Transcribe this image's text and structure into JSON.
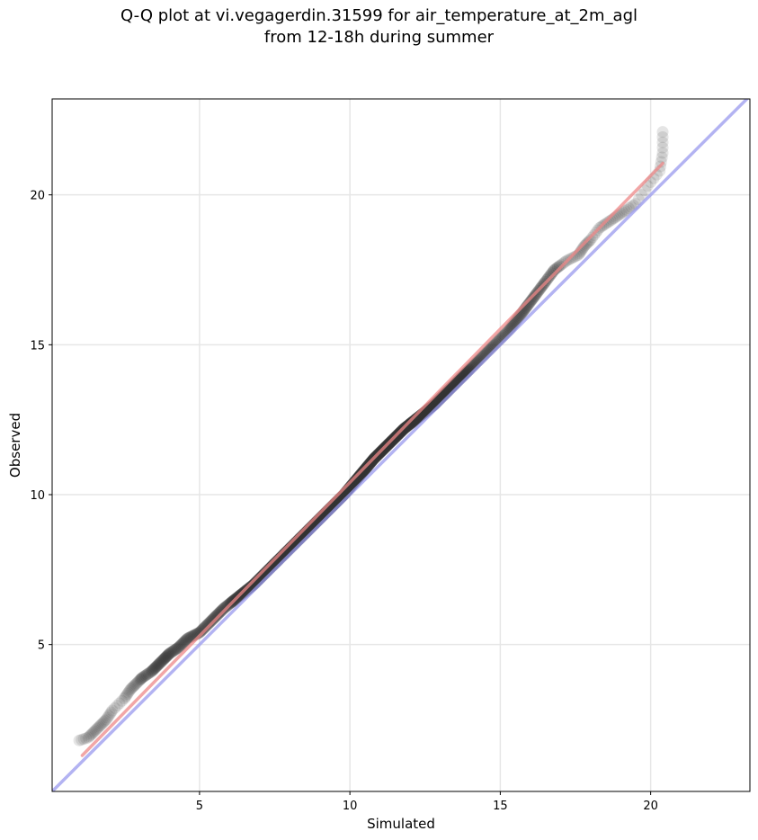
{
  "chart_data": {
    "type": "scatter",
    "title_lines": [
      "Q-Q plot at vi.vegagerdin.31599 for air_temperature_at_2m_agl",
      "from 12-18h during summer"
    ],
    "xlabel": "Simulated",
    "ylabel": "Observed",
    "xlim": [
      0.1,
      23.3
    ],
    "ylim": [
      0.1,
      23.2
    ],
    "xticks": [
      5,
      10,
      15,
      20
    ],
    "yticks": [
      5,
      10,
      15,
      20
    ],
    "grid": true,
    "reference_line": {
      "type": "identity",
      "from": [
        0.1,
        0.1
      ],
      "to": [
        23.3,
        23.3
      ],
      "color": "#9999ee"
    },
    "fit_line": {
      "from": [
        1.1,
        1.3
      ],
      "to": [
        20.4,
        21.05
      ],
      "color": "#ee8888"
    },
    "qq_points": {
      "color": "#333333",
      "x": [
        1.0,
        1.3,
        1.5,
        1.7,
        1.9,
        2.1,
        2.5,
        2.7,
        2.9,
        3.1,
        3.4,
        3.6,
        3.8,
        4.0,
        4.3,
        4.6,
        5.0,
        5.4,
        5.8,
        6.3,
        6.8,
        7.3,
        7.8,
        8.3,
        8.8,
        9.3,
        9.8,
        10.3,
        10.8,
        11.3,
        11.8,
        12.3,
        12.8,
        13.3,
        13.8,
        14.3,
        14.8,
        15.3,
        15.6,
        15.9,
        16.2,
        16.5,
        16.8,
        17.2,
        17.6,
        17.8,
        18.0,
        18.3,
        18.6,
        18.9,
        19.2,
        19.5,
        19.9,
        20.3,
        20.4,
        20.4
      ],
      "y": [
        1.8,
        1.9,
        2.1,
        2.3,
        2.5,
        2.8,
        3.2,
        3.5,
        3.7,
        3.9,
        4.1,
        4.3,
        4.5,
        4.7,
        4.9,
        5.2,
        5.4,
        5.8,
        6.2,
        6.6,
        7.0,
        7.5,
        8.0,
        8.5,
        9.0,
        9.5,
        10.0,
        10.6,
        11.2,
        11.7,
        12.2,
        12.6,
        13.0,
        13.5,
        14.0,
        14.5,
        15.0,
        15.5,
        15.9,
        16.3,
        16.7,
        17.1,
        17.5,
        17.8,
        18.0,
        18.3,
        18.5,
        18.9,
        19.1,
        19.3,
        19.5,
        19.7,
        20.3,
        20.8,
        21.4,
        22.1
      ]
    }
  }
}
